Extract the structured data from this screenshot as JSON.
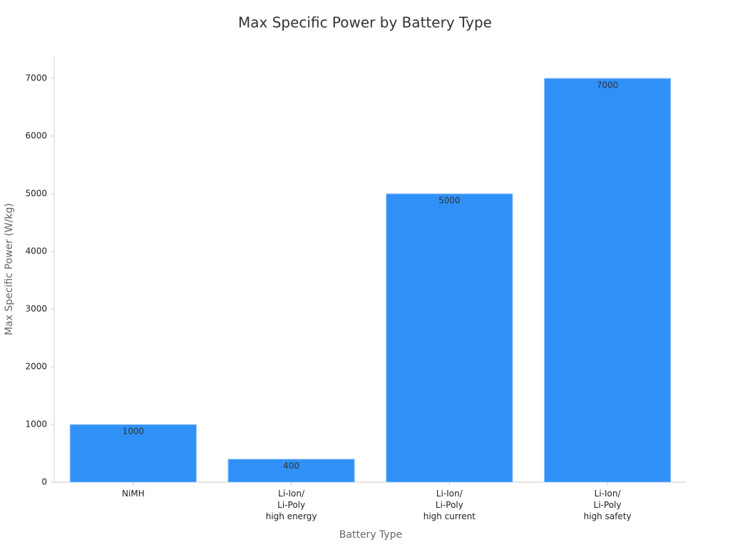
{
  "chart_data": {
    "type": "bar",
    "title": "Max Specific Power by Battery Type",
    "x_label": "Battery Type",
    "y_label": "Max Specific Power (W/kg)",
    "categories": [
      "NiMH",
      "Li-Ion/\nLi-Poly\nhigh energy",
      "Li-Ion/\nLi-Poly\nhigh current",
      "Li-Ion/\nLi-Poly\nhigh safety"
    ],
    "values": [
      1000,
      400,
      5000,
      7000
    ],
    "color": "#2f91f8",
    "ylim": [
      0,
      7370
    ],
    "yticks": [
      0,
      1000,
      2000,
      3000,
      4000,
      5000,
      6000,
      7000
    ],
    "grid": false
  }
}
